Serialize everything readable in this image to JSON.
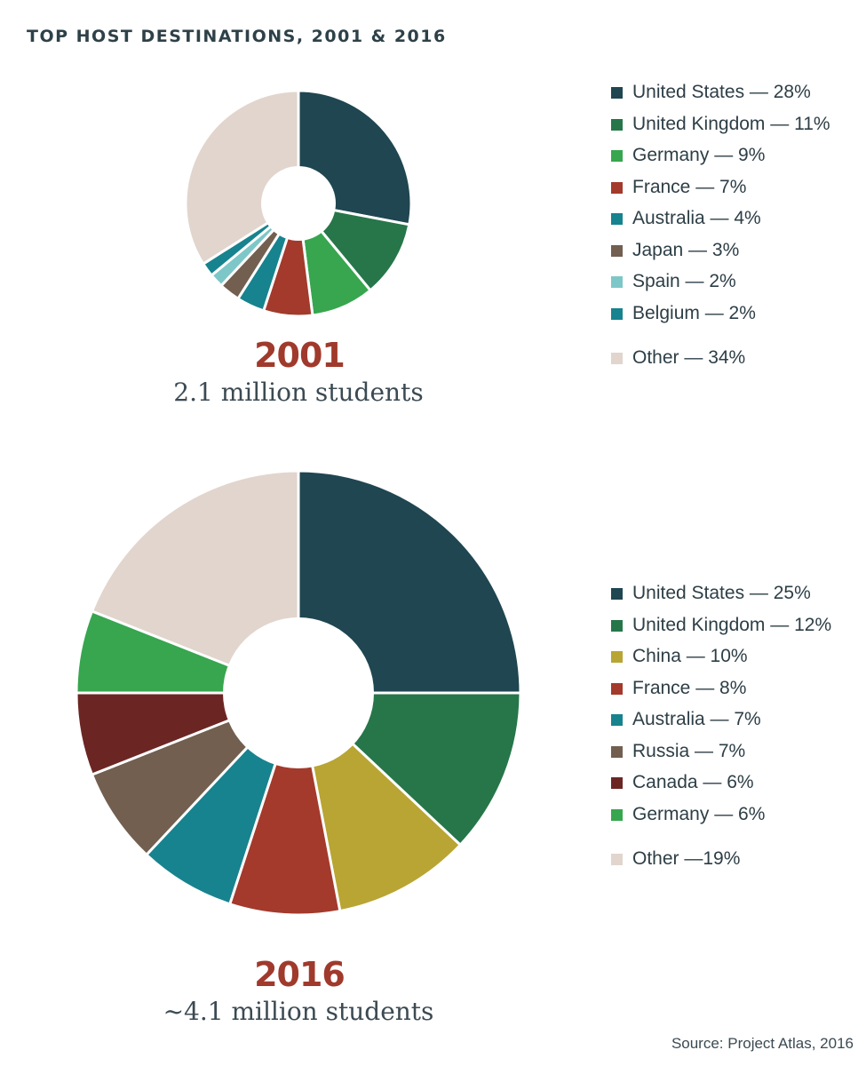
{
  "title": "TOP HOST DESTINATIONS, 2001 & 2016",
  "source": "Source: Project Atlas, 2016",
  "chart_data": [
    {
      "type": "pie",
      "title": "2001",
      "subtitle": "2.1 million students",
      "style": "donut",
      "slices": [
        {
          "label": "United States — 28%",
          "name": "United States",
          "value": 28,
          "color": "#1f4651"
        },
        {
          "label": "United Kingdom — 11%",
          "name": "United Kingdom",
          "value": 11,
          "color": "#267649"
        },
        {
          "label": "Germany — 9%",
          "name": "Germany",
          "value": 9,
          "color": "#37a64f"
        },
        {
          "label": "France — 7%",
          "name": "France",
          "value": 7,
          "color": "#a33a2c"
        },
        {
          "label": "Australia — 4%",
          "name": "Australia",
          "value": 4,
          "color": "#17838e"
        },
        {
          "label": "Japan — 3%",
          "name": "Japan",
          "value": 3,
          "color": "#725f50"
        },
        {
          "label": "Spain — 2%",
          "name": "Spain",
          "value": 2,
          "color": "#7ec7c8"
        },
        {
          "label": "Belgium — 2%",
          "name": "Belgium",
          "value": 2,
          "color": "#17838e"
        },
        {
          "label": "Other — 34%",
          "name": "Other",
          "value": 34,
          "color": "#e1d5cd",
          "other": true
        }
      ]
    },
    {
      "type": "pie",
      "title": "2016",
      "subtitle": "~4.1 million students",
      "style": "donut",
      "slices": [
        {
          "label": "United States — 25%",
          "name": "United States",
          "value": 25,
          "color": "#1f4651"
        },
        {
          "label": "United Kingdom — 12%",
          "name": "United Kingdom",
          "value": 12,
          "color": "#267649"
        },
        {
          "label": "China — 10%",
          "name": "China",
          "value": 10,
          "color": "#b8a534"
        },
        {
          "label": "France — 8%",
          "name": "France",
          "value": 8,
          "color": "#a33a2c"
        },
        {
          "label": "Australia — 7%",
          "name": "Australia",
          "value": 7,
          "color": "#17838e"
        },
        {
          "label": "Russia — 7%",
          "name": "Russia",
          "value": 7,
          "color": "#725f50"
        },
        {
          "label": "Canada — 6%",
          "name": "Canada",
          "value": 6,
          "color": "#6b2624"
        },
        {
          "label": "Germany — 6%",
          "name": "Germany",
          "value": 6,
          "color": "#37a64f"
        },
        {
          "label": "Other —19%",
          "name": "Other",
          "value": 19,
          "color": "#e1d5cd",
          "other": true
        }
      ]
    }
  ]
}
